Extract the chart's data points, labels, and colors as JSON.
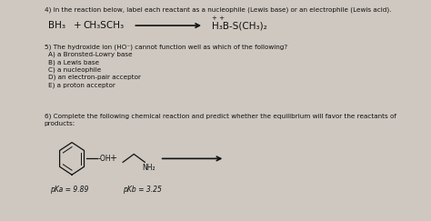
{
  "bg_color": "#cec8c0",
  "title_q4": "4) In the reaction below, label each reactant as a nucleophile (Lewis base) or an electrophile (Lewis acid).",
  "rxn_bh3": "BH₃",
  "rxn_plus1": "+",
  "rxn_ch3sch3": "CH₃SCH₃",
  "rxn_product": "H₃B-S(CH₃)₂",
  "rxn_charges": "+ +",
  "q5_text": "5) The hydroxide ion (HO⁻) cannot function well as which of the following?",
  "q5_a": "A) a Bronsted-Lowry base",
  "q5_b": "B) a Lewis base",
  "q5_c": "C) a nucleophile",
  "q5_d": "D) an electron-pair acceptor",
  "q5_e": "E) a proton acceptor",
  "q6_line1": "6) Complete the following chemical reaction and predict whether the equilibrium will favor the reactants of",
  "q6_line2": "products:",
  "oh_label": "-OH",
  "nh2_label": "NH₂",
  "pka_label": "pKa = 9.89",
  "pkb_label": "pKb = 3.25",
  "text_color": "#111111",
  "font_size_small": 5.2,
  "font_size_rxn": 7.5,
  "font_size_pka": 5.5
}
